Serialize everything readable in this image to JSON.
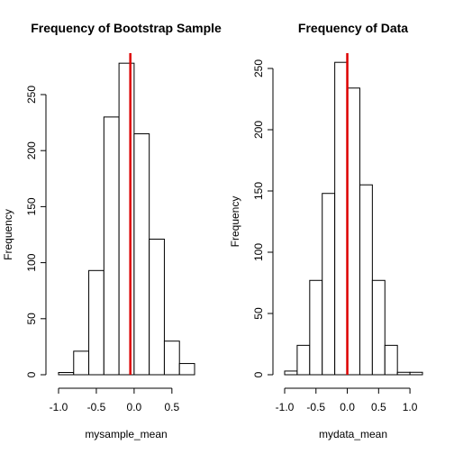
{
  "chart_data": [
    {
      "type": "bar",
      "title": "Frequency of Bootstrap Sample",
      "xlabel": "mysample_mean",
      "ylabel": "Frequency",
      "xlim": [
        -1.0,
        0.8
      ],
      "ylim": [
        0,
        280
      ],
      "xticks": [
        -1.0,
        -0.5,
        0.0,
        0.5
      ],
      "xtick_labels": [
        "-1.0",
        "-0.5",
        "0.0",
        "0.5"
      ],
      "yticks": [
        0,
        50,
        100,
        150,
        200,
        250
      ],
      "ytick_labels": [
        "0",
        "50",
        "100",
        "150",
        "200",
        "250"
      ],
      "bins": [
        {
          "start": -1.0,
          "end": -0.8,
          "count": 2
        },
        {
          "start": -0.8,
          "end": -0.6,
          "count": 21
        },
        {
          "start": -0.6,
          "end": -0.4,
          "count": 93
        },
        {
          "start": -0.4,
          "end": -0.2,
          "count": 230
        },
        {
          "start": -0.2,
          "end": 0.0,
          "count": 278
        },
        {
          "start": 0.0,
          "end": 0.2,
          "count": 215
        },
        {
          "start": 0.2,
          "end": 0.4,
          "count": 121
        },
        {
          "start": 0.4,
          "end": 0.6,
          "count": 30
        },
        {
          "start": 0.6,
          "end": 0.8,
          "count": 10
        }
      ],
      "vline": {
        "x": -0.05,
        "color": "#dd0000"
      },
      "grid": false,
      "bar_fill": "#ffffff",
      "bar_stroke": "#000000"
    },
    {
      "type": "bar",
      "title": "Frequency of Data",
      "xlabel": "mydata_mean",
      "ylabel": "Frequency",
      "xlim": [
        -1.0,
        1.2
      ],
      "ylim": [
        0,
        260
      ],
      "xticks": [
        -1.0,
        -0.5,
        0.0,
        0.5,
        1.0
      ],
      "xtick_labels": [
        "-1.0",
        "-0.5",
        "0.0",
        "0.5",
        "1.0"
      ],
      "yticks": [
        0,
        50,
        100,
        150,
        200,
        250
      ],
      "ytick_labels": [
        "0",
        "50",
        "100",
        "150",
        "200",
        "250"
      ],
      "bins": [
        {
          "start": -1.0,
          "end": -0.8,
          "count": 3
        },
        {
          "start": -0.8,
          "end": -0.6,
          "count": 24
        },
        {
          "start": -0.6,
          "end": -0.4,
          "count": 77
        },
        {
          "start": -0.4,
          "end": -0.2,
          "count": 148
        },
        {
          "start": -0.2,
          "end": 0.0,
          "count": 255
        },
        {
          "start": 0.0,
          "end": 0.2,
          "count": 234
        },
        {
          "start": 0.2,
          "end": 0.4,
          "count": 155
        },
        {
          "start": 0.4,
          "end": 0.6,
          "count": 77
        },
        {
          "start": 0.6,
          "end": 0.8,
          "count": 24
        },
        {
          "start": 0.8,
          "end": 1.0,
          "count": 2
        },
        {
          "start": 1.0,
          "end": 1.2,
          "count": 2
        }
      ],
      "vline": {
        "x": 0.0,
        "color": "#dd0000"
      },
      "grid": false,
      "bar_fill": "#ffffff",
      "bar_stroke": "#000000"
    }
  ]
}
